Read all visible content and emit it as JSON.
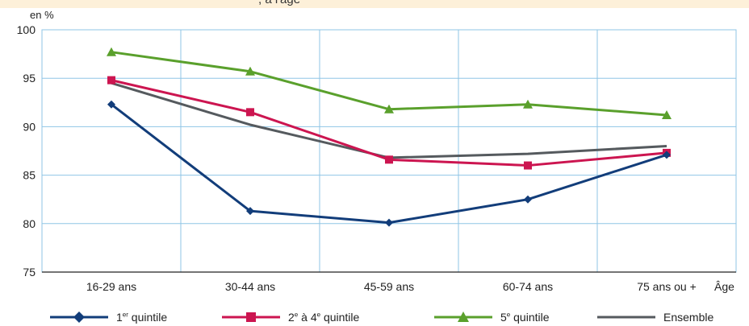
{
  "header_fragment": ", à l'âge",
  "chart_data": {
    "type": "line",
    "ylabel": "en %",
    "xlabel": "Âge",
    "ylim": [
      75,
      100
    ],
    "yticks": [
      75,
      80,
      85,
      90,
      95,
      100
    ],
    "categories": [
      "16-29 ans",
      "30-44 ans",
      "45-59 ans",
      "60-74 ans",
      "75 ans ou +"
    ],
    "grid": true,
    "legend_position": "bottom",
    "series": [
      {
        "name": "1er quintile",
        "label_main": "1",
        "label_sup": "er",
        "label_rest": " quintile",
        "color": "#123d7a",
        "marker": "diamond",
        "values": [
          92.3,
          81.3,
          80.1,
          82.5,
          87.1
        ]
      },
      {
        "name": "2e à 4e quintile",
        "label_main": "2",
        "label_sup": "e",
        "label_rest": " à 4",
        "label_sup2": "e",
        "label_rest2": " quintile",
        "color": "#cc1550",
        "marker": "square",
        "values": [
          94.8,
          91.5,
          86.6,
          86.0,
          87.3
        ]
      },
      {
        "name": "5e quintile",
        "label_main": "5",
        "label_sup": "e",
        "label_rest": " quintile",
        "color": "#5aa02c",
        "marker": "triangle",
        "values": [
          97.7,
          95.7,
          91.8,
          92.3,
          91.2
        ]
      },
      {
        "name": "Ensemble",
        "label_main": "Ensemble",
        "color": "#555a5e",
        "marker": "none",
        "values": [
          94.5,
          90.2,
          86.8,
          87.2,
          88.0
        ]
      }
    ]
  }
}
